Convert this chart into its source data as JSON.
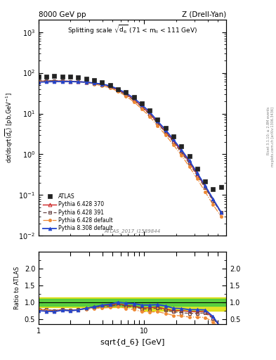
{
  "title_left": "8000 GeV pp",
  "title_right": "Z (Drell-Yan)",
  "plot_title": "Splitting scale $\\sqrt{\\mathrm{d}_6}$ (71 < m$_{ll}$ < 111 GeV)",
  "xlabel": "sqrt{d_6} [GeV]",
  "ylabel_main": "d$\\sigma$\n/dsqrt($\\overline{d_6}$) [pb,GeV$^{-1}$]",
  "ylabel_ratio": "Ratio to ATLAS",
  "watermark": "ATLAS_2017_I1589844",
  "right_label": "Rivet 3.1.10; ≥ 2.8M events\nmcplots.cern.ch [arXiv:1306.3436]",
  "atlas_x": [
    1.0,
    1.19,
    1.41,
    1.68,
    2.0,
    2.37,
    2.82,
    3.36,
    3.99,
    4.74,
    5.64,
    6.7,
    7.97,
    9.47,
    11.26,
    13.39,
    15.92,
    18.93,
    22.49,
    26.75,
    31.8,
    37.81,
    44.96,
    53.46
  ],
  "atlas_y": [
    79.0,
    82.0,
    85.0,
    80.0,
    82.0,
    78.0,
    72.0,
    65.0,
    58.0,
    51.0,
    40.0,
    33.0,
    25.0,
    18.0,
    12.0,
    7.0,
    4.5,
    2.8,
    1.6,
    0.9,
    0.45,
    0.22,
    0.14,
    0.16
  ],
  "py6_370_x": [
    1.0,
    1.19,
    1.41,
    1.68,
    2.0,
    2.37,
    2.82,
    3.36,
    3.99,
    4.74,
    5.64,
    6.7,
    7.97,
    9.47,
    11.26,
    13.39,
    15.92,
    18.93,
    22.49,
    26.75,
    31.8,
    37.81,
    44.96,
    53.46
  ],
  "py6_370_y": [
    62.0,
    63.0,
    63.0,
    63.0,
    62.0,
    61.0,
    59.0,
    56.0,
    52.0,
    47.0,
    38.0,
    30.0,
    22.0,
    15.0,
    10.0,
    6.0,
    3.6,
    2.1,
    1.2,
    0.65,
    0.32,
    0.16,
    0.075,
    0.038
  ],
  "py6_391_x": [
    1.0,
    1.19,
    1.41,
    1.68,
    2.0,
    2.37,
    2.82,
    3.36,
    3.99,
    4.74,
    5.64,
    6.7,
    7.97,
    9.47,
    11.26,
    13.39,
    15.92,
    18.93,
    22.49,
    26.75,
    31.8,
    37.81,
    44.96,
    53.46
  ],
  "py6_391_y": [
    63.0,
    64.0,
    64.0,
    63.0,
    62.0,
    61.0,
    58.0,
    55.0,
    50.0,
    45.0,
    37.0,
    29.0,
    21.5,
    14.5,
    9.5,
    5.8,
    3.4,
    2.0,
    1.1,
    0.6,
    0.3,
    0.15,
    0.072,
    0.037
  ],
  "py6_def_x": [
    1.0,
    1.19,
    1.41,
    1.68,
    2.0,
    2.37,
    2.82,
    3.36,
    3.99,
    4.74,
    5.64,
    6.7,
    7.97,
    9.47,
    11.26,
    13.39,
    15.92,
    18.93,
    22.49,
    26.75,
    31.8,
    37.81,
    44.96,
    53.46
  ],
  "py6_def_y": [
    62.0,
    62.0,
    62.0,
    62.0,
    61.0,
    60.0,
    57.0,
    53.0,
    48.0,
    43.0,
    35.0,
    27.0,
    19.5,
    13.0,
    8.5,
    5.0,
    3.0,
    1.7,
    0.95,
    0.5,
    0.25,
    0.12,
    0.058,
    0.03
  ],
  "py8_def_x": [
    1.0,
    1.19,
    1.41,
    1.68,
    2.0,
    2.37,
    2.82,
    3.36,
    3.99,
    4.74,
    5.64,
    6.7,
    7.97,
    9.47,
    11.26,
    13.39,
    15.92,
    18.93,
    22.49,
    26.75,
    31.8,
    37.81,
    44.96,
    53.46
  ],
  "py8_def_y": [
    59.0,
    60.0,
    61.0,
    61.0,
    61.0,
    60.0,
    59.0,
    56.0,
    53.0,
    48.0,
    40.0,
    32.0,
    24.0,
    16.5,
    11.0,
    6.5,
    4.0,
    2.3,
    1.3,
    0.7,
    0.35,
    0.17,
    0.08,
    0.038
  ],
  "ratio_py6_370": [
    0.785,
    0.768,
    0.741,
    0.788,
    0.756,
    0.782,
    0.819,
    0.862,
    0.897,
    0.922,
    0.95,
    0.909,
    0.88,
    0.833,
    0.833,
    0.857,
    0.8,
    0.75,
    0.75,
    0.722,
    0.711,
    0.727,
    0.536,
    0.238
  ],
  "ratio_py6_391": [
    0.797,
    0.78,
    0.753,
    0.788,
    0.756,
    0.782,
    0.806,
    0.846,
    0.862,
    0.882,
    0.925,
    0.879,
    0.86,
    0.806,
    0.792,
    0.829,
    0.756,
    0.714,
    0.688,
    0.667,
    0.667,
    0.682,
    0.514,
    0.231
  ],
  "ratio_py6_def": [
    0.785,
    0.756,
    0.729,
    0.775,
    0.744,
    0.769,
    0.792,
    0.815,
    0.828,
    0.843,
    0.875,
    0.818,
    0.78,
    0.722,
    0.708,
    0.714,
    0.667,
    0.607,
    0.594,
    0.556,
    0.556,
    0.545,
    0.414,
    0.188
  ],
  "ratio_py8_def": [
    0.747,
    0.732,
    0.718,
    0.763,
    0.744,
    0.769,
    0.819,
    0.862,
    0.914,
    0.941,
    1.0,
    0.97,
    0.96,
    0.917,
    0.917,
    0.929,
    0.889,
    0.821,
    0.813,
    0.778,
    0.778,
    0.773,
    0.571,
    0.238
  ],
  "color_atlas": "#222222",
  "color_py6_370": "#cc2222",
  "color_py6_391": "#664444",
  "color_py6_def": "#ee8833",
  "color_py8_def": "#2244cc",
  "color_green_band": "#44cc44",
  "color_yellow_band": "#dddd00",
  "xlim": [
    1.0,
    60.0
  ],
  "ylim_main": [
    0.01,
    2000.0
  ],
  "ylim_ratio": [
    0.35,
    2.5
  ]
}
